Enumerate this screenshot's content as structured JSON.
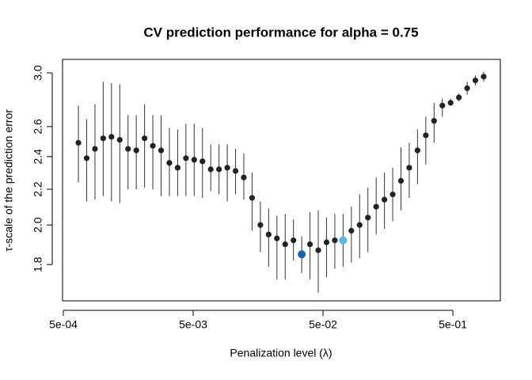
{
  "chart_data": {
    "type": "scatter",
    "title": "CV prediction performance for alpha = 0.75",
    "x_label": "Penalization level (λ)",
    "y_label": "τ-scale of the prediction error",
    "x_log": true,
    "y_log": true,
    "xlim": [
      0.000493,
      1.16
    ],
    "ylim": [
      1.634,
      3.11
    ],
    "xticks": [
      {
        "value": 0.0005,
        "label": "5e-04"
      },
      {
        "value": 0.005,
        "label": "5e-03"
      },
      {
        "value": 0.05,
        "label": "5e-02"
      },
      {
        "value": 0.5,
        "label": "5e-01"
      }
    ],
    "yticks": [
      {
        "value": 1.8,
        "label": "1.8"
      },
      {
        "value": 2.0,
        "label": "2.0"
      },
      {
        "value": 2.2,
        "label": "2.2"
      },
      {
        "value": 2.4,
        "label": "2.4"
      },
      {
        "value": 2.6,
        "label": "2.6"
      },
      {
        "value": 3.0,
        "label": "3.0"
      }
    ],
    "color": "#222222",
    "highlights": [
      {
        "index": 27,
        "color": "#1565ad"
      },
      {
        "index": 32,
        "color": "#5ab4e5"
      }
    ],
    "x": [
      0.000653,
      0.000756,
      0.000876,
      0.001014,
      0.001174,
      0.00136,
      0.001575,
      0.001823,
      0.002112,
      0.002445,
      0.002831,
      0.003279,
      0.003797,
      0.004396,
      0.005091,
      0.005895,
      0.006826,
      0.007905,
      0.009154,
      0.0106,
      0.01227,
      0.01421,
      0.01646,
      0.01906,
      0.02207,
      0.02556,
      0.02959,
      0.03427,
      0.03968,
      0.04595,
      0.05321,
      0.06162,
      0.07136,
      0.08263,
      0.09568,
      0.1108,
      0.1283,
      0.1486,
      0.172,
      0.1992,
      0.2307,
      0.2671,
      0.3093,
      0.3582,
      0.4148,
      0.4803,
      0.5562,
      0.6441,
      0.7458,
      0.8636
    ],
    "values": [
      2.49,
      2.39,
      2.45,
      2.52,
      2.53,
      2.51,
      2.45,
      2.44,
      2.52,
      2.47,
      2.44,
      2.36,
      2.33,
      2.39,
      2.38,
      2.37,
      2.32,
      2.32,
      2.33,
      2.31,
      2.27,
      2.15,
      2.0,
      1.95,
      1.93,
      1.9,
      1.92,
      1.85,
      1.9,
      1.87,
      1.91,
      1.92,
      1.92,
      1.97,
      2.0,
      2.04,
      2.1,
      2.14,
      2.17,
      2.25,
      2.33,
      2.44,
      2.54,
      2.64,
      2.75,
      2.77,
      2.81,
      2.88,
      2.94,
      2.97
    ],
    "upper": [
      2.75,
      2.65,
      2.76,
      2.93,
      2.92,
      2.91,
      2.68,
      2.68,
      2.76,
      2.68,
      2.68,
      2.59,
      2.58,
      2.62,
      2.62,
      2.59,
      2.48,
      2.48,
      2.48,
      2.45,
      2.42,
      2.3,
      2.13,
      2.09,
      2.05,
      2.06,
      2.03,
      1.94,
      2.07,
      2.08,
      2.04,
      2.06,
      2.06,
      2.1,
      2.17,
      2.21,
      2.27,
      2.3,
      2.33,
      2.46,
      2.49,
      2.58,
      2.67,
      2.77,
      2.8,
      2.8,
      2.84,
      2.93,
      2.98,
      3.01
    ],
    "lower": [
      2.24,
      2.13,
      2.14,
      2.16,
      2.13,
      2.12,
      2.2,
      2.2,
      2.21,
      2.2,
      2.16,
      2.16,
      2.16,
      2.16,
      2.16,
      2.15,
      2.19,
      2.17,
      2.13,
      2.17,
      2.14,
      1.97,
      1.86,
      1.79,
      1.73,
      1.73,
      1.82,
      1.76,
      1.73,
      1.67,
      1.74,
      1.78,
      1.79,
      1.81,
      1.83,
      1.86,
      1.95,
      1.98,
      2.02,
      2.08,
      2.15,
      2.23,
      2.35,
      2.49,
      2.67,
      2.75,
      2.78,
      2.83,
      2.9,
      2.93
    ]
  }
}
